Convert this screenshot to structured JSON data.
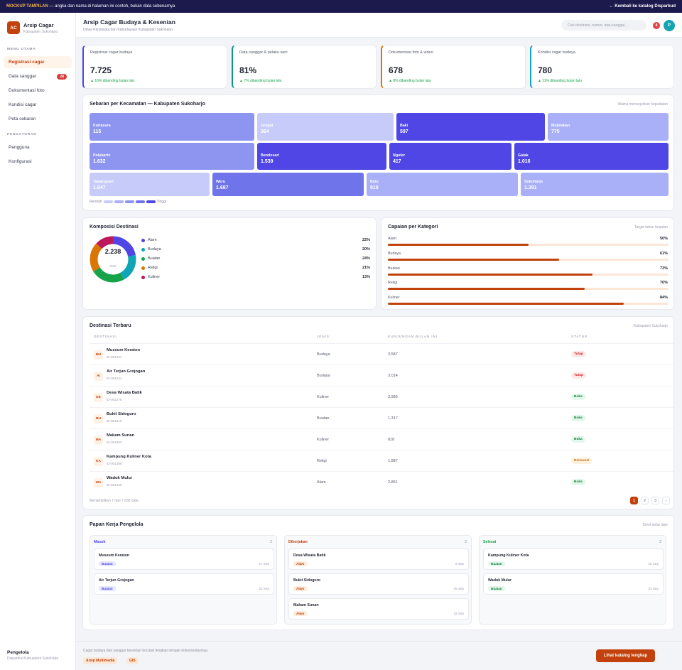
{
  "topbar": {
    "badge": "MOCKUP TAMPILAN",
    "text": " — angka dan nama di halaman ini contoh, bukan data sebenarnya",
    "back": "← Kembali ke katalog Disparbud"
  },
  "sidebar": {
    "logo": "AC",
    "app_name": "Arsip Cagar",
    "app_sub": "Kabupaten Sukoharjo",
    "section_main": "MENU UTAMA",
    "items": [
      {
        "label": "Registrasi cagar",
        "active": true
      },
      {
        "label": "Data sanggar",
        "badge": "28"
      },
      {
        "label": "Dokumentasi foto"
      },
      {
        "label": "Kondisi cagar"
      },
      {
        "label": "Peta sebaran"
      }
    ],
    "section_settings": "PENGATURAN",
    "settings_items": [
      {
        "label": "Pengguna"
      },
      {
        "label": "Konfigurasi"
      }
    ],
    "footer_title": "Pengelola",
    "footer_sub": "Disparbud Kabupaten Sukoharjo"
  },
  "header": {
    "title": "Arsip Cagar Budaya & Kesenian",
    "subtitle": "Dinas Pariwisata dan Kebudayaan Kabupaten Sukoharjo",
    "search_placeholder": "Cari destinasi, nomor, atau tanggal...",
    "notif_count": "8",
    "avatar": "P"
  },
  "stats": [
    {
      "label": "Registrasi cagar budaya",
      "value": "7.725",
      "change": "▲ 16% dibanding bulan lalu",
      "color": "#4f46e5"
    },
    {
      "label": "Data sanggar & pelaku seni",
      "value": "81%",
      "change": "▲ 7% dibanding bulan lalu",
      "color": "#0d9488"
    },
    {
      "label": "Dokumentasi foto & video",
      "value": "678",
      "change": "▲ 8% dibanding bulan lalu",
      "color": "#d97706"
    },
    {
      "label": "Kondisi cagar budaya",
      "value": "780",
      "change": "▲ 11% dibanding bulan lalu",
      "color": "#0ea5b7"
    }
  ],
  "treemap": {
    "title": "Sebaran per Kecamatan — Kabupaten Sukoharjo",
    "note": "Warna menunjukkan kepadatan",
    "legend_low": "Rendah",
    "legend_high": "Tinggi",
    "legend_colors": [
      "#c7cbfa",
      "#a9b0f7",
      "#8d95f1",
      "#6f74ea",
      "#4f46e5"
    ],
    "rows": [
      [
        {
          "name": "Kartasura",
          "value": "115",
          "color": "#8d95f1"
        },
        {
          "name": "Grogol",
          "value": "364",
          "color": "#c7cbfa"
        },
        {
          "name": "Baki",
          "value": "597",
          "color": "#4f46e5"
        },
        {
          "name": "Mojolaban",
          "value": "775",
          "color": "#a9b0f7"
        }
      ],
      [
        {
          "name": "Polokarto",
          "value": "1.632",
          "color": "#8d95f1"
        },
        {
          "name": "Bendosari",
          "value": "1.539",
          "color": "#4f46e5"
        },
        {
          "name": "Nguter",
          "value": "417",
          "color": "#4f46e5"
        },
        {
          "name": "Gatak",
          "value": "1.016",
          "color": "#4f46e5"
        }
      ],
      [
        {
          "name": "Tawangsari",
          "value": "1.047",
          "color": "#c7cbfa"
        },
        {
          "name": "Weru",
          "value": "1.687",
          "color": "#6f74ea"
        },
        {
          "name": "Bulu",
          "value": "818",
          "color": "#a9b0f7"
        },
        {
          "name": "Sukoharjo",
          "value": "1.391",
          "color": "#a9b0f7"
        }
      ]
    ]
  },
  "komposisi": {
    "title": "Komposisi Destinasi",
    "total": "2.238",
    "total_label": "total",
    "items": [
      {
        "label": "Alam",
        "pct": "22%",
        "value": 22,
        "color": "#4f46e5"
      },
      {
        "label": "Budaya",
        "pct": "20%",
        "value": 20,
        "color": "#0ea5b7"
      },
      {
        "label": "Buatan",
        "pct": "24%",
        "value": 24,
        "color": "#16a34a"
      },
      {
        "label": "Religi",
        "pct": "21%",
        "value": 21,
        "color": "#d97706"
      },
      {
        "label": "Kuliner",
        "pct": "13%",
        "value": 13,
        "color": "#be185d"
      }
    ]
  },
  "capaian": {
    "title": "Capaian per Kategori",
    "note": "Target tahun berjalan",
    "items": [
      {
        "label": "Alam",
        "pct": "50%",
        "value": 50
      },
      {
        "label": "Budaya",
        "pct": "61%",
        "value": 61
      },
      {
        "label": "Buatan",
        "pct": "73%",
        "value": 73
      },
      {
        "label": "Religi",
        "pct": "70%",
        "value": 70
      },
      {
        "label": "Kuliner",
        "pct": "84%",
        "value": 84
      }
    ]
  },
  "table": {
    "title": "Destinasi Terbaru",
    "note": "Kabupaten Sukoharjo",
    "headers": [
      "DESTINASI",
      "JENIS",
      "KUNJUNGAN BULAN INI",
      "STATUS"
    ],
    "rows": [
      {
        "ini": "MU",
        "name": "Museum Keraton",
        "id": "ID-001234",
        "jenis": "Budaya",
        "kunjungan": "3.587",
        "status": "Tutup",
        "cls": "tutup"
      },
      {
        "ini": "AI",
        "name": "Air Terjun Grojogan",
        "id": "ID-001241",
        "jenis": "Budaya",
        "kunjungan": "3.014",
        "status": "Tutup",
        "cls": "tutup"
      },
      {
        "ini": "DE",
        "name": "Desa Wisata Batik",
        "id": "ID-001278",
        "jenis": "Kuliner",
        "kunjungan": "3.985",
        "status": "Buka",
        "cls": "buka"
      },
      {
        "ini": "BU",
        "name": "Bukit Sidoguro",
        "id": "ID-001315",
        "jenis": "Buatan",
        "kunjungan": "1.317",
        "status": "Buka",
        "cls": "buka"
      },
      {
        "ini": "MA",
        "name": "Makam Sunan",
        "id": "ID-001352",
        "jenis": "Kuliner",
        "kunjungan": "818",
        "status": "Buka",
        "cls": "buka"
      },
      {
        "ini": "KA",
        "name": "Kampung Kuliner Kota",
        "id": "ID-001389",
        "jenis": "Religi",
        "kunjungan": "1.887",
        "status": "Renovasi",
        "cls": "renov"
      },
      {
        "ini": "WA",
        "name": "Waduk Mulur",
        "id": "ID-001426",
        "jenis": "Alam",
        "kunjungan": "2.851",
        "status": "Buka",
        "cls": "buka"
      }
    ],
    "footer": "Menampilkan 7 dari 7.638 data",
    "pages": [
      "1",
      "2",
      "3",
      "›"
    ]
  },
  "kanban": {
    "title": "Papan Kerja Pengelola",
    "note": "Seret antar lajur",
    "columns": [
      {
        "title": "Masuk",
        "count": "2",
        "color": "#4f46e5",
        "cards": [
          {
            "name": "Museum Keraton",
            "tag": "Buatan",
            "date": "17 Sep",
            "tag_bg": "#e6e8fd",
            "tag_fg": "#4f46e5"
          },
          {
            "name": "Air Terjun Grojogan",
            "tag": "Buatan",
            "date": "22 Sep",
            "tag_bg": "#e6e8fd",
            "tag_fg": "#4f46e5"
          }
        ]
      },
      {
        "title": "Dikerjakan",
        "count": "3",
        "color": "#c2410c",
        "cards": [
          {
            "name": "Desa Wisata Batik",
            "tag": "Alam",
            "date": "6 Sep",
            "tag_bg": "#fdebd9",
            "tag_fg": "#c2410c"
          },
          {
            "name": "Bukit Sidoguro",
            "tag": "Alam",
            "date": "25 Sep",
            "tag_bg": "#fdebd9",
            "tag_fg": "#c2410c"
          },
          {
            "name": "Makam Sunan",
            "tag": "Alam",
            "date": "22 Sep",
            "tag_bg": "#fdebd9",
            "tag_fg": "#c2410c"
          }
        ]
      },
      {
        "title": "Selesai",
        "count": "2",
        "color": "#16a34a",
        "cards": [
          {
            "name": "Kampung Kuliner Kota",
            "tag": "Buatan",
            "date": "18 Sep",
            "tag_bg": "#e3f7ec",
            "tag_fg": "#15803d"
          },
          {
            "name": "Waduk Mulur",
            "tag": "Buatan",
            "date": "23 Sep",
            "tag_bg": "#e3f7ec",
            "tag_fg": "#15803d"
          }
        ]
      }
    ]
  },
  "footer": {
    "text": "Cagar budaya dan sanggar kesenian tercatat lengkap dengan dokumentasinya.",
    "tags": [
      "Arsip Multimedia",
      "GIS"
    ],
    "cta": "Lihat katalog lengkap"
  }
}
